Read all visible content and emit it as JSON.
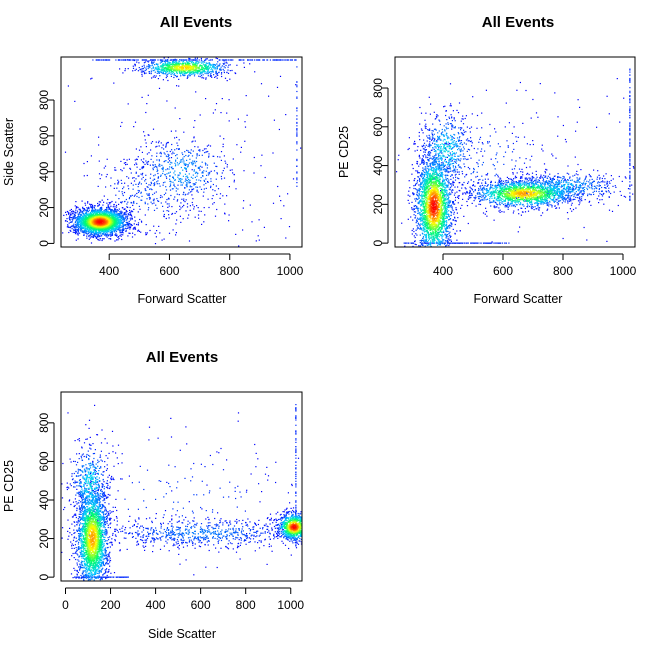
{
  "chart_data": [
    {
      "type": "scatter",
      "title": "All Events",
      "xlabel": "Forward Scatter",
      "ylabel": "Side Scatter",
      "xlim": [
        240,
        1040
      ],
      "ylim": [
        -20,
        1040
      ],
      "xticks": [
        400,
        600,
        800,
        1000
      ],
      "yticks": [
        0,
        200,
        400,
        600,
        800
      ],
      "grid": false,
      "legend": "none",
      "color_scale": [
        "#0000ff",
        "#00ccff",
        "#00ff66",
        "#ffff00",
        "#ff0000"
      ],
      "clusters": [
        {
          "x": 370,
          "y": 120,
          "sx": 45,
          "sy": 38,
          "n": 2600,
          "density": 1.0
        },
        {
          "x": 650,
          "y": 980,
          "sx": 70,
          "sy": 25,
          "n": 900,
          "density": 0.8
        },
        {
          "x": 640,
          "y": 400,
          "sx": 85,
          "sy": 100,
          "n": 500,
          "density": 0.2
        },
        {
          "x": 520,
          "y": 280,
          "sx": 90,
          "sy": 120,
          "n": 260,
          "density": 0.1
        }
      ],
      "saturation_lines": [
        {
          "axis": "y",
          "value": 1023,
          "from": 340,
          "to": 1023,
          "n": 200
        },
        {
          "axis": "x",
          "value": 1023,
          "from": 300,
          "to": 1000,
          "n": 40
        }
      ],
      "background_points": 120
    },
    {
      "type": "scatter",
      "title": "All Events",
      "xlabel": "Forward Scatter",
      "ylabel": "PE CD25",
      "xlim": [
        240,
        1040
      ],
      "ylim": [
        -20,
        960
      ],
      "xticks": [
        400,
        600,
        800,
        1000
      ],
      "yticks": [
        0,
        200,
        400,
        600,
        800
      ],
      "grid": false,
      "legend": "none",
      "color_scale": [
        "#0000ff",
        "#00ccff",
        "#00ff66",
        "#ffff00",
        "#ff0000"
      ],
      "clusters": [
        {
          "x": 370,
          "y": 190,
          "sx": 30,
          "sy": 130,
          "n": 2400,
          "density": 1.0
        },
        {
          "x": 410,
          "y": 480,
          "sx": 45,
          "sy": 100,
          "n": 500,
          "density": 0.3
        },
        {
          "x": 670,
          "y": 255,
          "sx": 85,
          "sy": 35,
          "n": 1600,
          "density": 0.85
        },
        {
          "x": 800,
          "y": 290,
          "sx": 100,
          "sy": 40,
          "n": 500,
          "density": 0.25
        },
        {
          "x": 520,
          "y": 420,
          "sx": 120,
          "sy": 120,
          "n": 200,
          "density": 0.1
        }
      ],
      "saturation_lines": [
        {
          "axis": "y",
          "value": 0,
          "from": 270,
          "to": 620,
          "n": 120
        },
        {
          "axis": "x",
          "value": 1023,
          "from": 220,
          "to": 900,
          "n": 90
        }
      ],
      "background_points": 80
    },
    {
      "type": "scatter",
      "title": "All Events",
      "xlabel": "Side Scatter",
      "ylabel": "PE CD25",
      "xlim": [
        -20,
        1050
      ],
      "ylim": [
        -20,
        960
      ],
      "xticks": [
        0,
        200,
        400,
        600,
        800,
        1000
      ],
      "yticks": [
        0,
        200,
        400,
        600,
        800
      ],
      "grid": false,
      "legend": "none",
      "color_scale": [
        "#0000ff",
        "#00ccff",
        "#00ff66",
        "#ffff00",
        "#ff0000"
      ],
      "clusters": [
        {
          "x": 120,
          "y": 200,
          "sx": 35,
          "sy": 130,
          "n": 2400,
          "density": 0.85
        },
        {
          "x": 110,
          "y": 480,
          "sx": 45,
          "sy": 110,
          "n": 500,
          "density": 0.3
        },
        {
          "x": 1015,
          "y": 260,
          "sx": 35,
          "sy": 35,
          "n": 900,
          "density": 1.0
        },
        {
          "x": 600,
          "y": 230,
          "sx": 230,
          "sy": 40,
          "n": 700,
          "density": 0.15
        },
        {
          "x": 500,
          "y": 400,
          "sx": 300,
          "sy": 150,
          "n": 150,
          "density": 0.08
        }
      ],
      "saturation_lines": [
        {
          "axis": "y",
          "value": 0,
          "from": 40,
          "to": 280,
          "n": 100
        },
        {
          "axis": "x",
          "value": 1023,
          "from": 160,
          "to": 900,
          "n": 90
        }
      ],
      "background_points": 60
    }
  ]
}
